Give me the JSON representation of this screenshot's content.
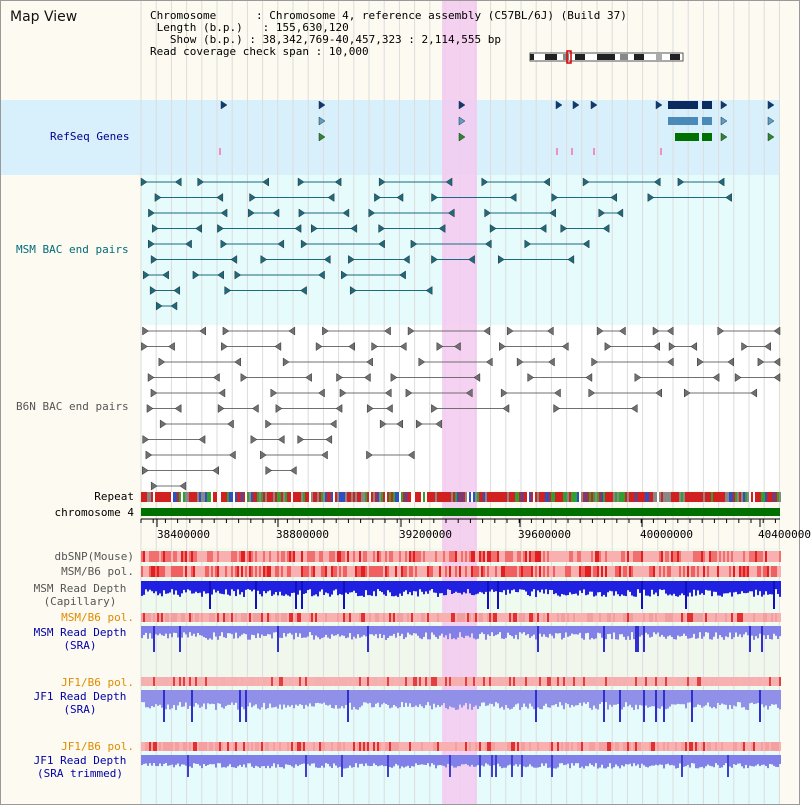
{
  "page": {
    "title": "Map View"
  },
  "info": {
    "chromosome_label": "Chromosome",
    "chromosome_value": "Chromosome 4, reference assembly (C57BL/6J) (Build 37)",
    "length_label": "Length (b.p.)",
    "length_value": "155,630,120",
    "show_label": "Show (b.p.)",
    "show_value": "38,342,769-40,457,323 : 2,114,555 bp",
    "coverage_label": "Read coverage check span",
    "coverage_value": "10,000"
  },
  "tracks": {
    "refseq": "RefSeq Genes",
    "msm_bac": "MSM BAC end pairs",
    "b6n_bac": "B6N BAC end pairs",
    "repeat": "Repeat",
    "chromosome": "chromosome 4",
    "dbsnp": "dbSNP(Mouse)",
    "msm_b6_pol_1": "MSM/B6 pol.",
    "msm_depth_cap_1": "MSM Read Depth",
    "msm_depth_cap_2": "(Capillary)",
    "msm_b6_pol_2": "MSM/B6 pol.",
    "msm_depth_sra_1": "MSM Read Depth",
    "msm_depth_sra_2": "(SRA)",
    "jf1_b6_pol_1": "JF1/B6 pol.",
    "jf1_depth_sra_1": "JF1 Read Depth",
    "jf1_depth_sra_2": "(SRA)",
    "jf1_b6_pol_2": "JF1/B6 pol.",
    "jf1_depth_trim_1": "JF1 Read Depth",
    "jf1_depth_trim_2": "(SRA trimmed)"
  },
  "axis": {
    "ticks": [
      "38400000",
      "38800000",
      "39200000",
      "39600000",
      "40000000",
      "40400000"
    ]
  },
  "colors": {
    "label_navy": "#000088",
    "label_teal": "#006b7a",
    "label_grey": "#555555",
    "label_orange": "#e08a00",
    "label_blue": "#0000aa",
    "highlight": "#f3c9f0",
    "refseq_bg": "#d8f0fb",
    "msm_bg": "#e6fbfb",
    "depth_blue": "#2020e0",
    "depth_light": "#8080e8",
    "chrom_green": "#007000"
  }
}
